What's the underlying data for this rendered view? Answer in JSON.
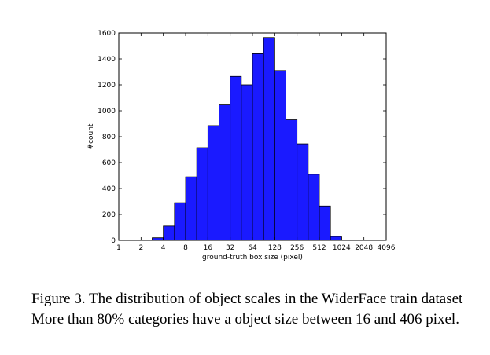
{
  "chart_data": {
    "type": "bar",
    "xlabel": "ground-truth box size (pixel)",
    "ylabel": "#count",
    "x_scale": "log2",
    "xlim": [
      1,
      4096
    ],
    "ylim": [
      0,
      1600
    ],
    "x_ticks": [
      "1",
      "2",
      "4",
      "8",
      "16",
      "32",
      "64",
      "128",
      "256",
      "512",
      "1024",
      "2048",
      "4096"
    ],
    "y_ticks": [
      "0",
      "200",
      "400",
      "600",
      "800",
      "1000",
      "1200",
      "1400",
      "1600"
    ],
    "bin_edges": [
      1,
      1.41,
      2,
      2.83,
      4,
      5.66,
      8,
      11.31,
      16,
      22.63,
      32,
      45.25,
      64,
      90.51,
      128,
      181.02,
      256,
      362.04,
      512,
      724.08,
      1024,
      1448.15,
      2048,
      2896.31,
      4096
    ],
    "values": [
      3,
      3,
      3,
      20,
      110,
      290,
      490,
      715,
      885,
      1045,
      1265,
      1200,
      1440,
      1565,
      1310,
      930,
      745,
      510,
      265,
      30,
      3,
      0,
      0,
      0
    ],
    "bar_color": "#1a1aff",
    "grid": false
  },
  "caption": "Figure 3. The distribution of object scales in the WiderFace train dataset More than 80% categories have a object size between 16 and 406 pixel."
}
